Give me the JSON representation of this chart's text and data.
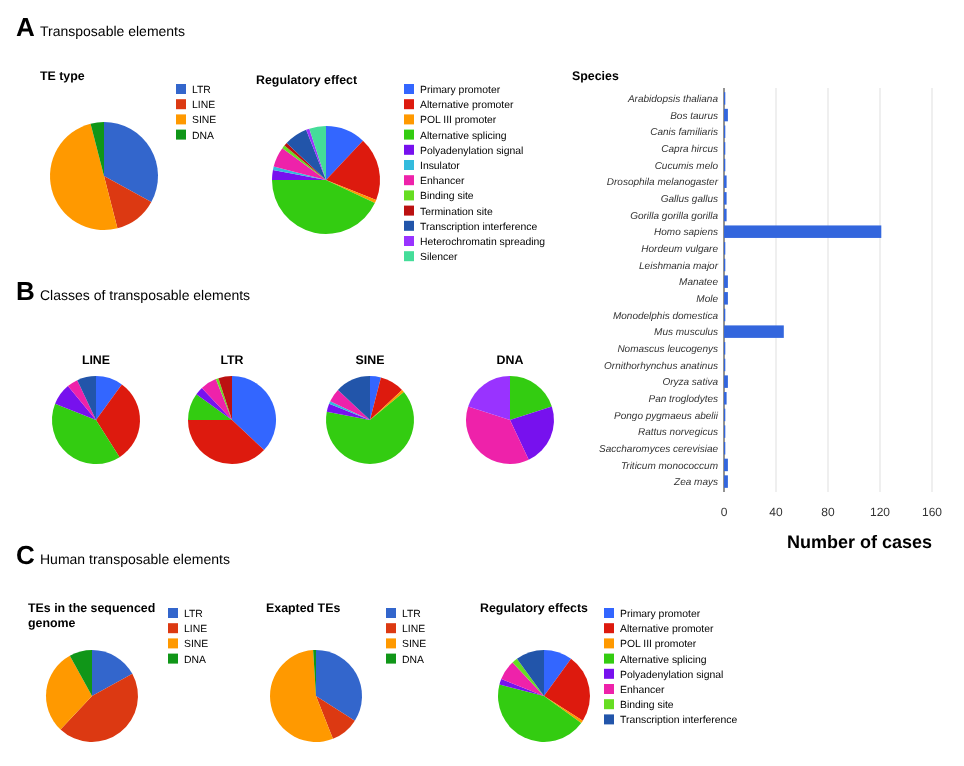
{
  "chart_data": [
    {
      "type": "pie",
      "title": "TE type",
      "annotations": [
        "A",
        "Transposable elements"
      ],
      "categories": [
        "LTR",
        "LINE",
        "SINE",
        "DNA"
      ],
      "values": [
        33,
        13,
        50,
        4
      ],
      "colors": [
        "#3366cc",
        "#dc3912",
        "#ff9900",
        "#109618"
      ],
      "legend": "right"
    },
    {
      "type": "pie",
      "title": "Regulatory effect",
      "categories": [
        "Primary promoter",
        "Alternative promoter",
        "POL III promoter",
        "Alternative splicing",
        "Polyadenylation signal",
        "Insulator",
        "Enhancer",
        "Binding site",
        "Termination site",
        "Transcription interference",
        "Heterochromatin spreading",
        "Silencer"
      ],
      "values": [
        12,
        19,
        1,
        43,
        3,
        1,
        6,
        1,
        1,
        7,
        1,
        5
      ],
      "colors": [
        "#3366ff",
        "#dd1a0e",
        "#ff9900",
        "#33cc11",
        "#7711ee",
        "#33bbdd",
        "#ee22aa",
        "#66dd22",
        "#bb1111",
        "#2255aa",
        "#9933ff",
        "#44dd99"
      ],
      "legend": "right"
    },
    {
      "type": "bar",
      "orientation": "horizontal",
      "title": "Species",
      "xlabel": "Number of cases",
      "categories": [
        "Arabidopsis thaliana",
        "Bos taurus",
        "Canis familiaris",
        "Capra hircus",
        "Cucumis melo",
        "Drosophila melanogaster",
        "Gallus gallus",
        "Gorilla gorilla gorilla",
        "Homo sapiens",
        "Hordeum vulgare",
        "Leishmania major",
        "Manatee",
        "Mole",
        "Monodelphis domestica",
        "Mus musculus",
        "Nomascus leucogenys",
        "Ornithorhynchus anatinus",
        "Oryza sativa",
        "Pan troglodytes",
        "Pongo pygmaeus abelii",
        "Rattus norvegicus",
        "Saccharomyces cerevisiae",
        "Triticum monococcum",
        "Zea mays"
      ],
      "values": [
        1,
        3,
        1,
        1,
        1,
        2,
        2,
        2,
        121,
        1,
        1,
        3,
        3,
        1,
        46,
        1,
        1,
        3,
        2,
        1,
        1,
        1,
        3,
        3
      ],
      "color": "#3366dd",
      "xlim": [
        0,
        160
      ],
      "xticks": [
        0,
        40,
        80,
        120,
        160
      ],
      "grid": "x"
    },
    {
      "type": "pie",
      "title": "LINE",
      "annotations": [
        "B",
        "Classes of transposable elements"
      ],
      "categories": [
        null,
        null,
        null,
        null,
        null,
        null
      ],
      "values": [
        10,
        31,
        40,
        8,
        4,
        7
      ],
      "colors": [
        "#3366ff",
        "#dd1a0e",
        "#33cc11",
        "#7711ee",
        "#ee22aa",
        "#2255aa"
      ]
    },
    {
      "type": "pie",
      "title": "LTR",
      "categories": [
        null,
        null,
        null,
        null,
        null,
        null,
        null
      ],
      "values": [
        37,
        38,
        10,
        3,
        6,
        1,
        5
      ],
      "colors": [
        "#3366ff",
        "#dd1a0e",
        "#33cc11",
        "#7711ee",
        "#ee22aa",
        "#66dd22",
        "#bb1111"
      ]
    },
    {
      "type": "pie",
      "title": "SINE",
      "categories": [
        null,
        null,
        null,
        null,
        null,
        null,
        null,
        null
      ],
      "values": [
        4,
        9,
        1,
        64,
        3,
        1,
        5,
        13
      ],
      "colors": [
        "#3366ff",
        "#dd1a0e",
        "#ff9900",
        "#33cc11",
        "#7711ee",
        "#33bbdd",
        "#ee22aa",
        "#2255aa"
      ]
    },
    {
      "type": "pie",
      "title": "DNA",
      "categories": [
        null,
        null,
        null,
        null
      ],
      "values": [
        20,
        23,
        37,
        20
      ],
      "colors": [
        "#33cc11",
        "#7711ee",
        "#ee22aa",
        "#9933ff"
      ]
    },
    {
      "type": "pie",
      "title": "TEs in the sequenced genome",
      "annotations": [
        "C",
        "Human transposable elements"
      ],
      "categories": [
        "LTR",
        "LINE",
        "SINE",
        "DNA"
      ],
      "values": [
        17,
        45,
        30,
        8
      ],
      "colors": [
        "#3366cc",
        "#dc3912",
        "#ff9900",
        "#109618"
      ],
      "legend": "right"
    },
    {
      "type": "pie",
      "title": "Exapted TEs",
      "categories": [
        "LTR",
        "LINE",
        "SINE",
        "DNA"
      ],
      "values": [
        34,
        10,
        55,
        1
      ],
      "colors": [
        "#3366cc",
        "#dc3912",
        "#ff9900",
        "#109618"
      ],
      "legend": "right"
    },
    {
      "type": "pie",
      "title": "Regulatory effects",
      "categories": [
        "Primary promoter",
        "Alternative promoter",
        "POL III promoter",
        "Alternative splicing",
        "Polyadenylation signal",
        "Enhancer",
        "Binding site",
        "Transcription interference"
      ],
      "values": [
        10,
        24,
        1,
        44,
        2,
        7,
        2,
        10
      ],
      "colors": [
        "#3366ff",
        "#dd1a0e",
        "#ff9900",
        "#33cc11",
        "#7711ee",
        "#ee22aa",
        "#66dd22",
        "#2255aa"
      ],
      "legend": "right"
    }
  ]
}
